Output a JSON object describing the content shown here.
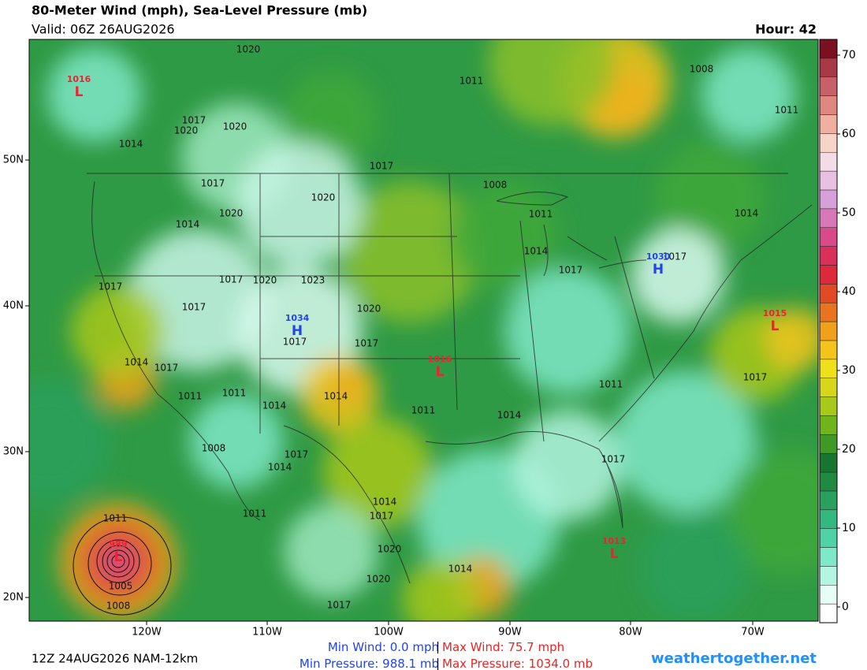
{
  "header": {
    "title": "80-Meter Wind (mph), Sea-Level Pressure (mb)",
    "valid": "Valid: 06Z 26AUG2026",
    "hour": "Hour: 42"
  },
  "map": {
    "lat_labels": [
      "50N",
      "40N",
      "30N",
      "20N"
    ],
    "lon_labels": [
      "120W",
      "110W",
      "100W",
      "90W",
      "80W",
      "70W"
    ],
    "isobar_labels": [
      1020,
      1011,
      1008,
      1011,
      1017,
      1020,
      1020,
      1014,
      1017,
      1008,
      1017,
      1020,
      1011,
      1020,
      1014,
      1014,
      1014,
      1017,
      1017,
      1017,
      1017,
      1020,
      1023,
      1017,
      1020,
      1017,
      1017,
      1014,
      1017,
      1011,
      1011,
      1014,
      1014,
      1011,
      1014,
      1017,
      1011,
      1017,
      1014,
      1017,
      1008,
      1011,
      1014,
      1017,
      1020,
      1020,
      1014,
      1017,
      1011,
      1005,
      1008
    ],
    "pressure_centers": [
      {
        "letter": "L",
        "value": 1016
      },
      {
        "letter": "H",
        "value": 1034
      },
      {
        "letter": "L",
        "value": 1016
      },
      {
        "letter": "L",
        "value": 1015
      },
      {
        "letter": "H",
        "value": 1030
      },
      {
        "letter": "L",
        "value": 1013
      },
      {
        "letter": "L",
        "value": 989
      }
    ]
  },
  "colorbar": {
    "range": [
      -2,
      72
    ],
    "ticks": [
      0,
      10,
      20,
      30,
      40,
      50,
      60,
      70
    ],
    "colors": [
      "#ffffff",
      "#e6fff6",
      "#b3f5e1",
      "#7fe8c8",
      "#4fd3a6",
      "#33b97f",
      "#2aa05c",
      "#1f8a40",
      "#16752f",
      "#3f9a25",
      "#6fb41a",
      "#a8c81a",
      "#d6d61a",
      "#f0e01a",
      "#f4c41a",
      "#f0a01a",
      "#e8741f",
      "#e04a25",
      "#dc2a3a",
      "#d8305a",
      "#d84a88",
      "#d878b8",
      "#d8a0d8",
      "#e8c0e0",
      "#f4dbe8",
      "#f8d4c8",
      "#f0b0a0",
      "#e08880",
      "#c86068",
      "#a83a48",
      "#7a1020"
    ]
  },
  "footer": {
    "run": "12Z 24AUG2026 NAM-12km",
    "min_wind_label": "Min Wind:",
    "min_wind": "0.0 mph",
    "max_wind_label": "Max Wind:",
    "max_wind": "75.7 mph",
    "min_pressure_label": "Min Pressure:",
    "min_pressure": "988.1 mb",
    "max_pressure_label": "Max Pressure:",
    "max_pressure": "1034.0 mb",
    "separator": "|",
    "site": "weathertogether.net"
  }
}
